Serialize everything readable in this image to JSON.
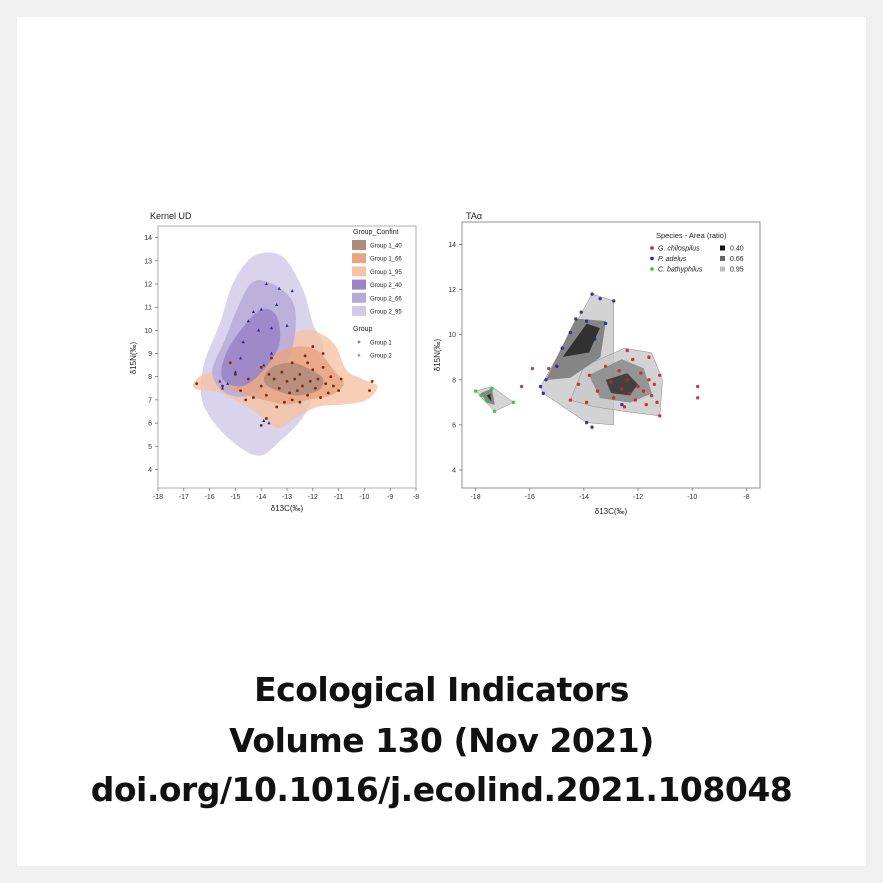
{
  "caption": {
    "journal": "Ecological Indicators",
    "volume": "Volume 130 (Nov 2021)",
    "doi": "doi.org/10.1016/j.ecolind.2021.108048"
  },
  "chart_data": [
    {
      "type": "scatter",
      "title": "Kernel UD",
      "xlabel": "δ13C(‰)",
      "ylabel": "δ15N(‰)",
      "xlim": [
        -18,
        -8
      ],
      "ylim": [
        3.2,
        14.5
      ],
      "xticks": [
        -18,
        -17,
        -16,
        -15,
        -14,
        -13,
        -12,
        -11,
        -10,
        -9,
        -8
      ],
      "yticks": [
        4,
        5,
        6,
        7,
        8,
        9,
        10,
        11,
        12,
        13,
        14
      ],
      "grid": false,
      "legend": {
        "placement": "top-right",
        "title": "Group_Confint",
        "entries": [
          {
            "label": "Group 1_40",
            "color": "#b08a7a"
          },
          {
            "label": "Group 1_66",
            "color": "#e6a583"
          },
          {
            "label": "Group 1_95",
            "color": "#f5c3a5"
          },
          {
            "label": "Group 2_40",
            "color": "#9a86c6"
          },
          {
            "label": "Group 2_66",
            "color": "#b7aad9"
          },
          {
            "label": "Group 2_95",
            "color": "#d2cbe8"
          }
        ],
        "marker_title": "Group",
        "marker_entries": [
          {
            "label": "Group 1",
            "shape": "circle"
          },
          {
            "label": "Group 2",
            "shape": "triangle"
          }
        ]
      },
      "series": [
        {
          "name": "Group 1",
          "color": "#7a2a12",
          "points": [
            [
              -16.5,
              7.7
            ],
            [
              -15.5,
              7.6
            ],
            [
              -15.0,
              8.1
            ],
            [
              -14.8,
              7.4
            ],
            [
              -14.5,
              7.9
            ],
            [
              -14.3,
              7.1
            ],
            [
              -14.0,
              8.4
            ],
            [
              -14.0,
              7.6
            ],
            [
              -13.8,
              7.2
            ],
            [
              -13.6,
              8.8
            ],
            [
              -13.5,
              7.9
            ],
            [
              -13.3,
              7.5
            ],
            [
              -13.2,
              8.2
            ],
            [
              -13.0,
              7.8
            ],
            [
              -12.9,
              7.3
            ],
            [
              -12.8,
              8.6
            ],
            [
              -12.7,
              7.9
            ],
            [
              -12.6,
              7.4
            ],
            [
              -12.5,
              8.1
            ],
            [
              -12.4,
              7.6
            ],
            [
              -12.3,
              8.9
            ],
            [
              -12.2,
              7.2
            ],
            [
              -12.1,
              7.8
            ],
            [
              -12.0,
              8.3
            ],
            [
              -11.9,
              7.5
            ],
            [
              -11.8,
              7.9
            ],
            [
              -11.7,
              7.1
            ],
            [
              -11.6,
              8.4
            ],
            [
              -11.5,
              7.7
            ],
            [
              -11.4,
              7.3
            ],
            [
              -11.3,
              8.0
            ],
            [
              -11.2,
              7.6
            ],
            [
              -11.0,
              7.4
            ],
            [
              -10.9,
              7.9
            ],
            [
              -13.8,
              6.2
            ],
            [
              -14.0,
              5.9
            ],
            [
              -12.5,
              6.9
            ],
            [
              -13.4,
              6.7
            ],
            [
              -12.0,
              9.3
            ],
            [
              -11.6,
              9.0
            ],
            [
              -15.2,
              8.6
            ],
            [
              -14.6,
              7.0
            ],
            [
              -13.1,
              6.9
            ],
            [
              -12.8,
              7.0
            ],
            [
              -13.7,
              8.1
            ],
            [
              -12.2,
              8.6
            ],
            [
              -9.8,
              7.4
            ],
            [
              -9.7,
              7.8
            ]
          ]
        },
        {
          "name": "Group 2",
          "color": "#2a2a8a",
          "points": [
            [
              -15.6,
              7.8
            ],
            [
              -15.5,
              7.5
            ],
            [
              -15.3,
              7.7
            ],
            [
              -15.0,
              8.2
            ],
            [
              -14.8,
              8.8
            ],
            [
              -14.7,
              9.5
            ],
            [
              -14.5,
              10.4
            ],
            [
              -14.3,
              10.8
            ],
            [
              -14.1,
              10.0
            ],
            [
              -14.0,
              10.9
            ],
            [
              -13.8,
              12.0
            ],
            [
              -13.6,
              10.1
            ],
            [
              -13.4,
              11.1
            ],
            [
              -13.3,
              11.8
            ],
            [
              -13.0,
              10.2
            ],
            [
              -12.8,
              11.7
            ],
            [
              -13.6,
              9.0
            ],
            [
              -13.9,
              8.5
            ],
            [
              -13.9,
              6.1
            ],
            [
              -13.7,
              6.0
            ]
          ]
        }
      ]
    },
    {
      "type": "scatter",
      "title": "TAα",
      "xlabel": "δ13C(‰)",
      "ylabel": "δ15N(‰)",
      "xlim": [
        -18.5,
        -7.5
      ],
      "ylim": [
        3.2,
        15
      ],
      "xticks": [
        -18,
        -16,
        -14,
        -12,
        -10,
        -8
      ],
      "yticks": [
        4,
        6,
        8,
        10,
        12,
        14
      ],
      "grid": false,
      "legend": {
        "placement": "top-right",
        "title": "Species - Area (ratio)",
        "entries": [
          {
            "label": "G. chilospilus",
            "color": "#cc2222"
          },
          {
            "label": "P. adelus",
            "color": "#2222aa"
          },
          {
            "label": "C. bathyphilus",
            "color": "#22cc22"
          }
        ],
        "area_entries": [
          {
            "label": "0.40",
            "color": "#111111"
          },
          {
            "label": "0.66",
            "color": "#666666"
          },
          {
            "label": "0.95",
            "color": "#bbbbbb"
          }
        ]
      },
      "series": [
        {
          "name": "G. chilospilus",
          "color": "#cc2222",
          "points": [
            [
              -16.3,
              7.7
            ],
            [
              -15.9,
              8.5
            ],
            [
              -15.3,
              8.5
            ],
            [
              -14.5,
              7.1
            ],
            [
              -13.8,
              8.2
            ],
            [
              -13.5,
              7.5
            ],
            [
              -13.2,
              8.6
            ],
            [
              -13.0,
              7.9
            ],
            [
              -12.9,
              7.2
            ],
            [
              -12.7,
              8.4
            ],
            [
              -12.6,
              7.6
            ],
            [
              -12.5,
              6.8
            ],
            [
              -12.4,
              8.0
            ],
            [
              -12.3,
              7.4
            ],
            [
              -12.2,
              8.9
            ],
            [
              -12.1,
              7.1
            ],
            [
              -12.0,
              7.7
            ],
            [
              -11.9,
              8.3
            ],
            [
              -11.8,
              7.5
            ],
            [
              -11.7,
              6.9
            ],
            [
              -11.6,
              8.0
            ],
            [
              -11.5,
              7.3
            ],
            [
              -11.4,
              7.8
            ],
            [
              -11.3,
              7.0
            ],
            [
              -11.2,
              8.2
            ],
            [
              -11.2,
              6.4
            ],
            [
              -11.6,
              9.0
            ],
            [
              -12.4,
              9.3
            ],
            [
              -13.9,
              7.0
            ],
            [
              -14.2,
              7.8
            ],
            [
              -9.8,
              7.7
            ],
            [
              -9.8,
              7.2
            ]
          ]
        },
        {
          "name": "P. adelus",
          "color": "#2222aa",
          "points": [
            [
              -15.6,
              7.7
            ],
            [
              -15.5,
              7.4
            ],
            [
              -15.4,
              8.0
            ],
            [
              -15.0,
              8.6
            ],
            [
              -14.8,
              9.4
            ],
            [
              -14.5,
              10.1
            ],
            [
              -14.3,
              10.7
            ],
            [
              -14.1,
              11.0
            ],
            [
              -13.9,
              10.6
            ],
            [
              -13.7,
              11.8
            ],
            [
              -13.4,
              11.6
            ],
            [
              -13.2,
              10.5
            ],
            [
              -12.9,
              11.5
            ],
            [
              -13.6,
              9.8
            ],
            [
              -13.9,
              6.1
            ],
            [
              -13.7,
              5.9
            ],
            [
              -12.6,
              6.9
            ]
          ]
        },
        {
          "name": "C. bathyphilus",
          "color": "#22cc22",
          "points": [
            [
              -18.0,
              7.5
            ],
            [
              -17.8,
              7.3
            ],
            [
              -17.6,
              7.1
            ],
            [
              -17.4,
              7.6
            ],
            [
              -17.3,
              6.6
            ],
            [
              -16.6,
              7.0
            ]
          ]
        }
      ]
    }
  ]
}
